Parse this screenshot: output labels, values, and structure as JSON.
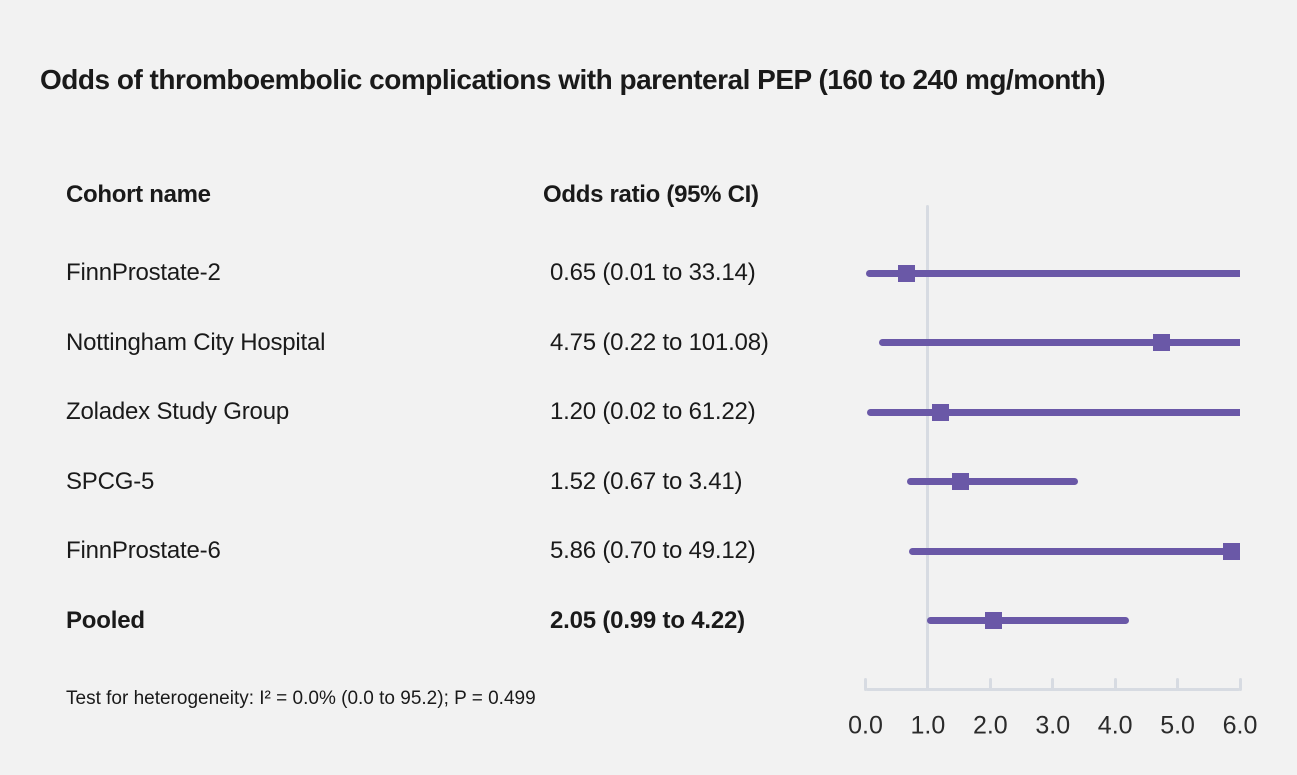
{
  "title": "Odds of thromboembolic complications with parenteral PEP (160 to 240 mg/month)",
  "columns": {
    "cohort": "Cohort name",
    "odds": "Odds ratio (95% CI)"
  },
  "footnote": "Test for heterogeneity: I² = 0.0% (0.0 to 95.2); P = 0.499",
  "colors": {
    "background": "#f2f2f2",
    "accent": "#6a58a7",
    "axis": "#d7dbe2",
    "text": "#1a1a1a"
  },
  "chart_data": {
    "type": "forest",
    "title": "Odds of thromboembolic complications with parenteral PEP (160 to 240 mg/month)",
    "xlabel": "",
    "axis": {
      "min": 0.0,
      "max": 6.0,
      "ticks": [
        0.0,
        1.0,
        2.0,
        3.0,
        4.0,
        5.0,
        6.0
      ],
      "tick_labels": [
        "0.0",
        "1.0",
        "2.0",
        "3.0",
        "4.0",
        "5.0",
        "6.0"
      ],
      "reference_line": 1.0
    },
    "rows": [
      {
        "label": "FinnProstate-2",
        "display": "0.65 (0.01 to 33.14)",
        "or": 0.65,
        "lo": 0.01,
        "hi": 33.14,
        "bold": false
      },
      {
        "label": "Nottingham City Hospital",
        "display": "4.75 (0.22 to 101.08)",
        "or": 4.75,
        "lo": 0.22,
        "hi": 101.08,
        "bold": false
      },
      {
        "label": "Zoladex Study Group",
        "display": "1.20 (0.02 to 61.22)",
        "or": 1.2,
        "lo": 0.02,
        "hi": 61.22,
        "bold": false
      },
      {
        "label": "SPCG-5",
        "display": "1.52 (0.67 to 3.41)",
        "or": 1.52,
        "lo": 0.67,
        "hi": 3.41,
        "bold": false
      },
      {
        "label": "FinnProstate-6",
        "display": "5.86 (0.70 to 49.12)",
        "or": 5.86,
        "lo": 0.7,
        "hi": 49.12,
        "bold": false
      },
      {
        "label": "Pooled",
        "display": "2.05 (0.99 to 4.22)",
        "or": 2.05,
        "lo": 0.99,
        "hi": 4.22,
        "bold": true
      }
    ]
  }
}
